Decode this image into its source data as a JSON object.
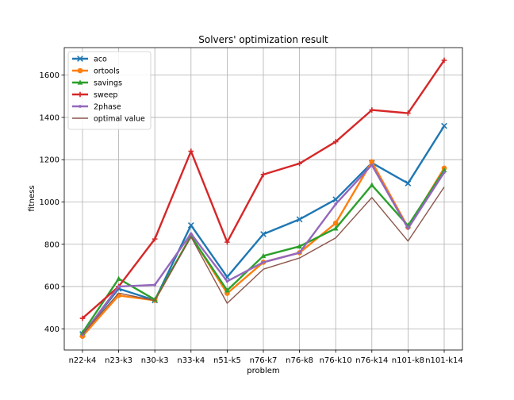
{
  "chart_data": {
    "type": "line",
    "title": "Solvers' optimization result",
    "xlabel": "problem",
    "ylabel": "fitness",
    "categories": [
      "n22-k4",
      "n23-k3",
      "n30-k3",
      "n33-k4",
      "n51-k5",
      "n76-k7",
      "n76-k8",
      "n76-k10",
      "n76-k14",
      "n101-k8",
      "n101-k14"
    ],
    "ylim": [
      300,
      1730
    ],
    "yticks": [
      400,
      600,
      800,
      1000,
      1200,
      1400,
      1600
    ],
    "grid": true,
    "legend_position": "top-left",
    "series": [
      {
        "name": "aco",
        "color": "#1f77b4",
        "marker": "x",
        "values": [
          375,
          590,
          535,
          890,
          645,
          848,
          918,
          1012,
          1185,
          1088,
          1360
        ]
      },
      {
        "name": "ortools",
        "color": "#ff7f0e",
        "marker": "o",
        "values": [
          365,
          558,
          535,
          840,
          568,
          715,
          760,
          900,
          1190,
          880,
          1160
        ]
      },
      {
        "name": "savings",
        "color": "#2ca02c",
        "marker": "^",
        "values": [
          382,
          637,
          538,
          838,
          582,
          745,
          790,
          875,
          1080,
          888,
          1150
        ]
      },
      {
        "name": "sweep",
        "color": "#d62728",
        "marker": "+",
        "values": [
          450,
          600,
          825,
          1240,
          810,
          1130,
          1182,
          1285,
          1435,
          1420,
          1670
        ]
      },
      {
        "name": "2phase",
        "color": "#9467bd",
        "marker": ".",
        "values": [
          372,
          600,
          608,
          850,
          625,
          715,
          760,
          990,
          1175,
          875,
          1140
        ]
      },
      {
        "name": "optimal value",
        "color": "#8c564b",
        "marker": "none",
        "values": [
          375,
          569,
          534,
          835,
          521,
          682,
          735,
          830,
          1021,
          815,
          1071
        ]
      }
    ]
  }
}
